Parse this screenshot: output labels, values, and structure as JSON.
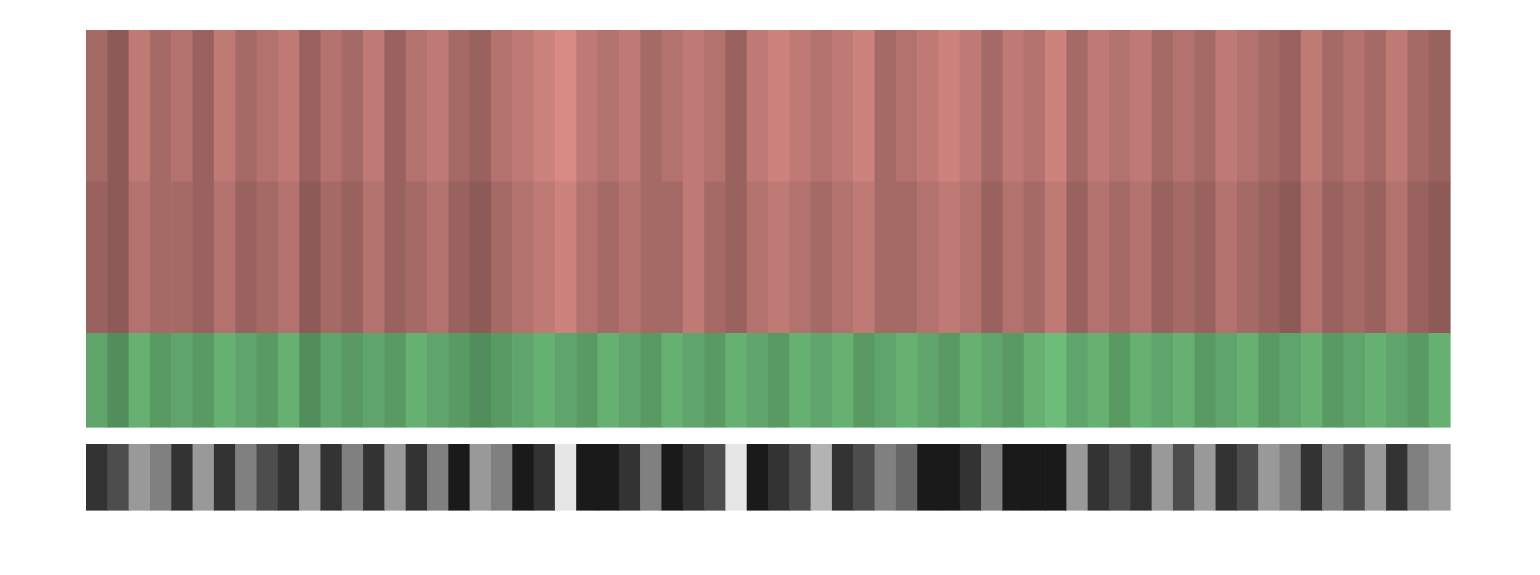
{
  "chart_data": {
    "type": "heatmap",
    "tick_labels": false,
    "panels": [
      {
        "color": "#d08580",
        "cells": [
          [
            0.5,
            0.4,
            0.6,
            0.5,
            0.55,
            0.45,
            0.6,
            0.5,
            0.55,
            0.6,
            0.45,
            0.55,
            0.5,
            0.6,
            0.45,
            0.55,
            0.6,
            0.5,
            0.45,
            0.55,
            0.6,
            0.65,
            0.7,
            0.6,
            0.55,
            0.6,
            0.5,
            0.55,
            0.6,
            0.55,
            0.45,
            0.6,
            0.65,
            0.6,
            0.55,
            0.6,
            0.65,
            0.5,
            0.55,
            0.6,
            0.65,
            0.6,
            0.5,
            0.6,
            0.55,
            0.65,
            0.5,
            0.6,
            0.55,
            0.6,
            0.5,
            0.55,
            0.5,
            0.6,
            0.55,
            0.5,
            0.45,
            0.6,
            0.5,
            0.55,
            0.5,
            0.6,
            0.5,
            0.45
          ],
          [
            0.45,
            0.4,
            0.55,
            0.5,
            0.5,
            0.45,
            0.55,
            0.45,
            0.5,
            0.55,
            0.4,
            0.5,
            0.45,
            0.55,
            0.45,
            0.5,
            0.55,
            0.45,
            0.4,
            0.5,
            0.55,
            0.6,
            0.65,
            0.55,
            0.5,
            0.55,
            0.5,
            0.5,
            0.6,
            0.5,
            0.45,
            0.55,
            0.6,
            0.55,
            0.5,
            0.55,
            0.6,
            0.5,
            0.5,
            0.55,
            0.6,
            0.55,
            0.45,
            0.55,
            0.5,
            0.6,
            0.45,
            0.55,
            0.5,
            0.55,
            0.45,
            0.5,
            0.45,
            0.55,
            0.5,
            0.45,
            0.4,
            0.55,
            0.45,
            0.5,
            0.45,
            0.55,
            0.45,
            0.4
          ]
        ]
      },
      {
        "color": "#6fc07c",
        "cells": [
          [
            0.55,
            0.45,
            0.6,
            0.5,
            0.55,
            0.5,
            0.6,
            0.55,
            0.5,
            0.6,
            0.45,
            0.55,
            0.5,
            0.55,
            0.5,
            0.6,
            0.55,
            0.5,
            0.45,
            0.5,
            0.55,
            0.6,
            0.55,
            0.5,
            0.6,
            0.55,
            0.5,
            0.6,
            0.55,
            0.5,
            0.6,
            0.55,
            0.5,
            0.6,
            0.55,
            0.6,
            0.5,
            0.55,
            0.6,
            0.55,
            0.5,
            0.6,
            0.55,
            0.5,
            0.6,
            0.65,
            0.55,
            0.6,
            0.5,
            0.6,
            0.55,
            0.6,
            0.5,
            0.55,
            0.6,
            0.5,
            0.55,
            0.6,
            0.5,
            0.55,
            0.6,
            0.55,
            0.5,
            0.6
          ]
        ]
      },
      {
        "color": "#ffffff",
        "cells": [
          [
            0.2,
            0.3,
            0.6,
            0.5,
            0.2,
            0.6,
            0.2,
            0.5,
            0.3,
            0.2,
            0.6,
            0.2,
            0.5,
            0.2,
            0.6,
            0.2,
            0.5,
            0.1,
            0.6,
            0.5,
            0.1,
            0.2,
            0.9,
            0.1,
            0.1,
            0.2,
            0.5,
            0.1,
            0.2,
            0.3,
            0.9,
            0.1,
            0.2,
            0.3,
            0.7,
            0.2,
            0.3,
            0.5,
            0.4,
            0.1,
            0.1,
            0.2,
            0.5,
            0.1,
            0.1,
            0.1,
            0.6,
            0.2,
            0.3,
            0.2,
            0.6,
            0.3,
            0.6,
            0.2,
            0.3,
            0.6,
            0.5,
            0.2,
            0.5,
            0.3,
            0.6,
            0.2,
            0.5,
            0.6
          ]
        ]
      }
    ]
  }
}
